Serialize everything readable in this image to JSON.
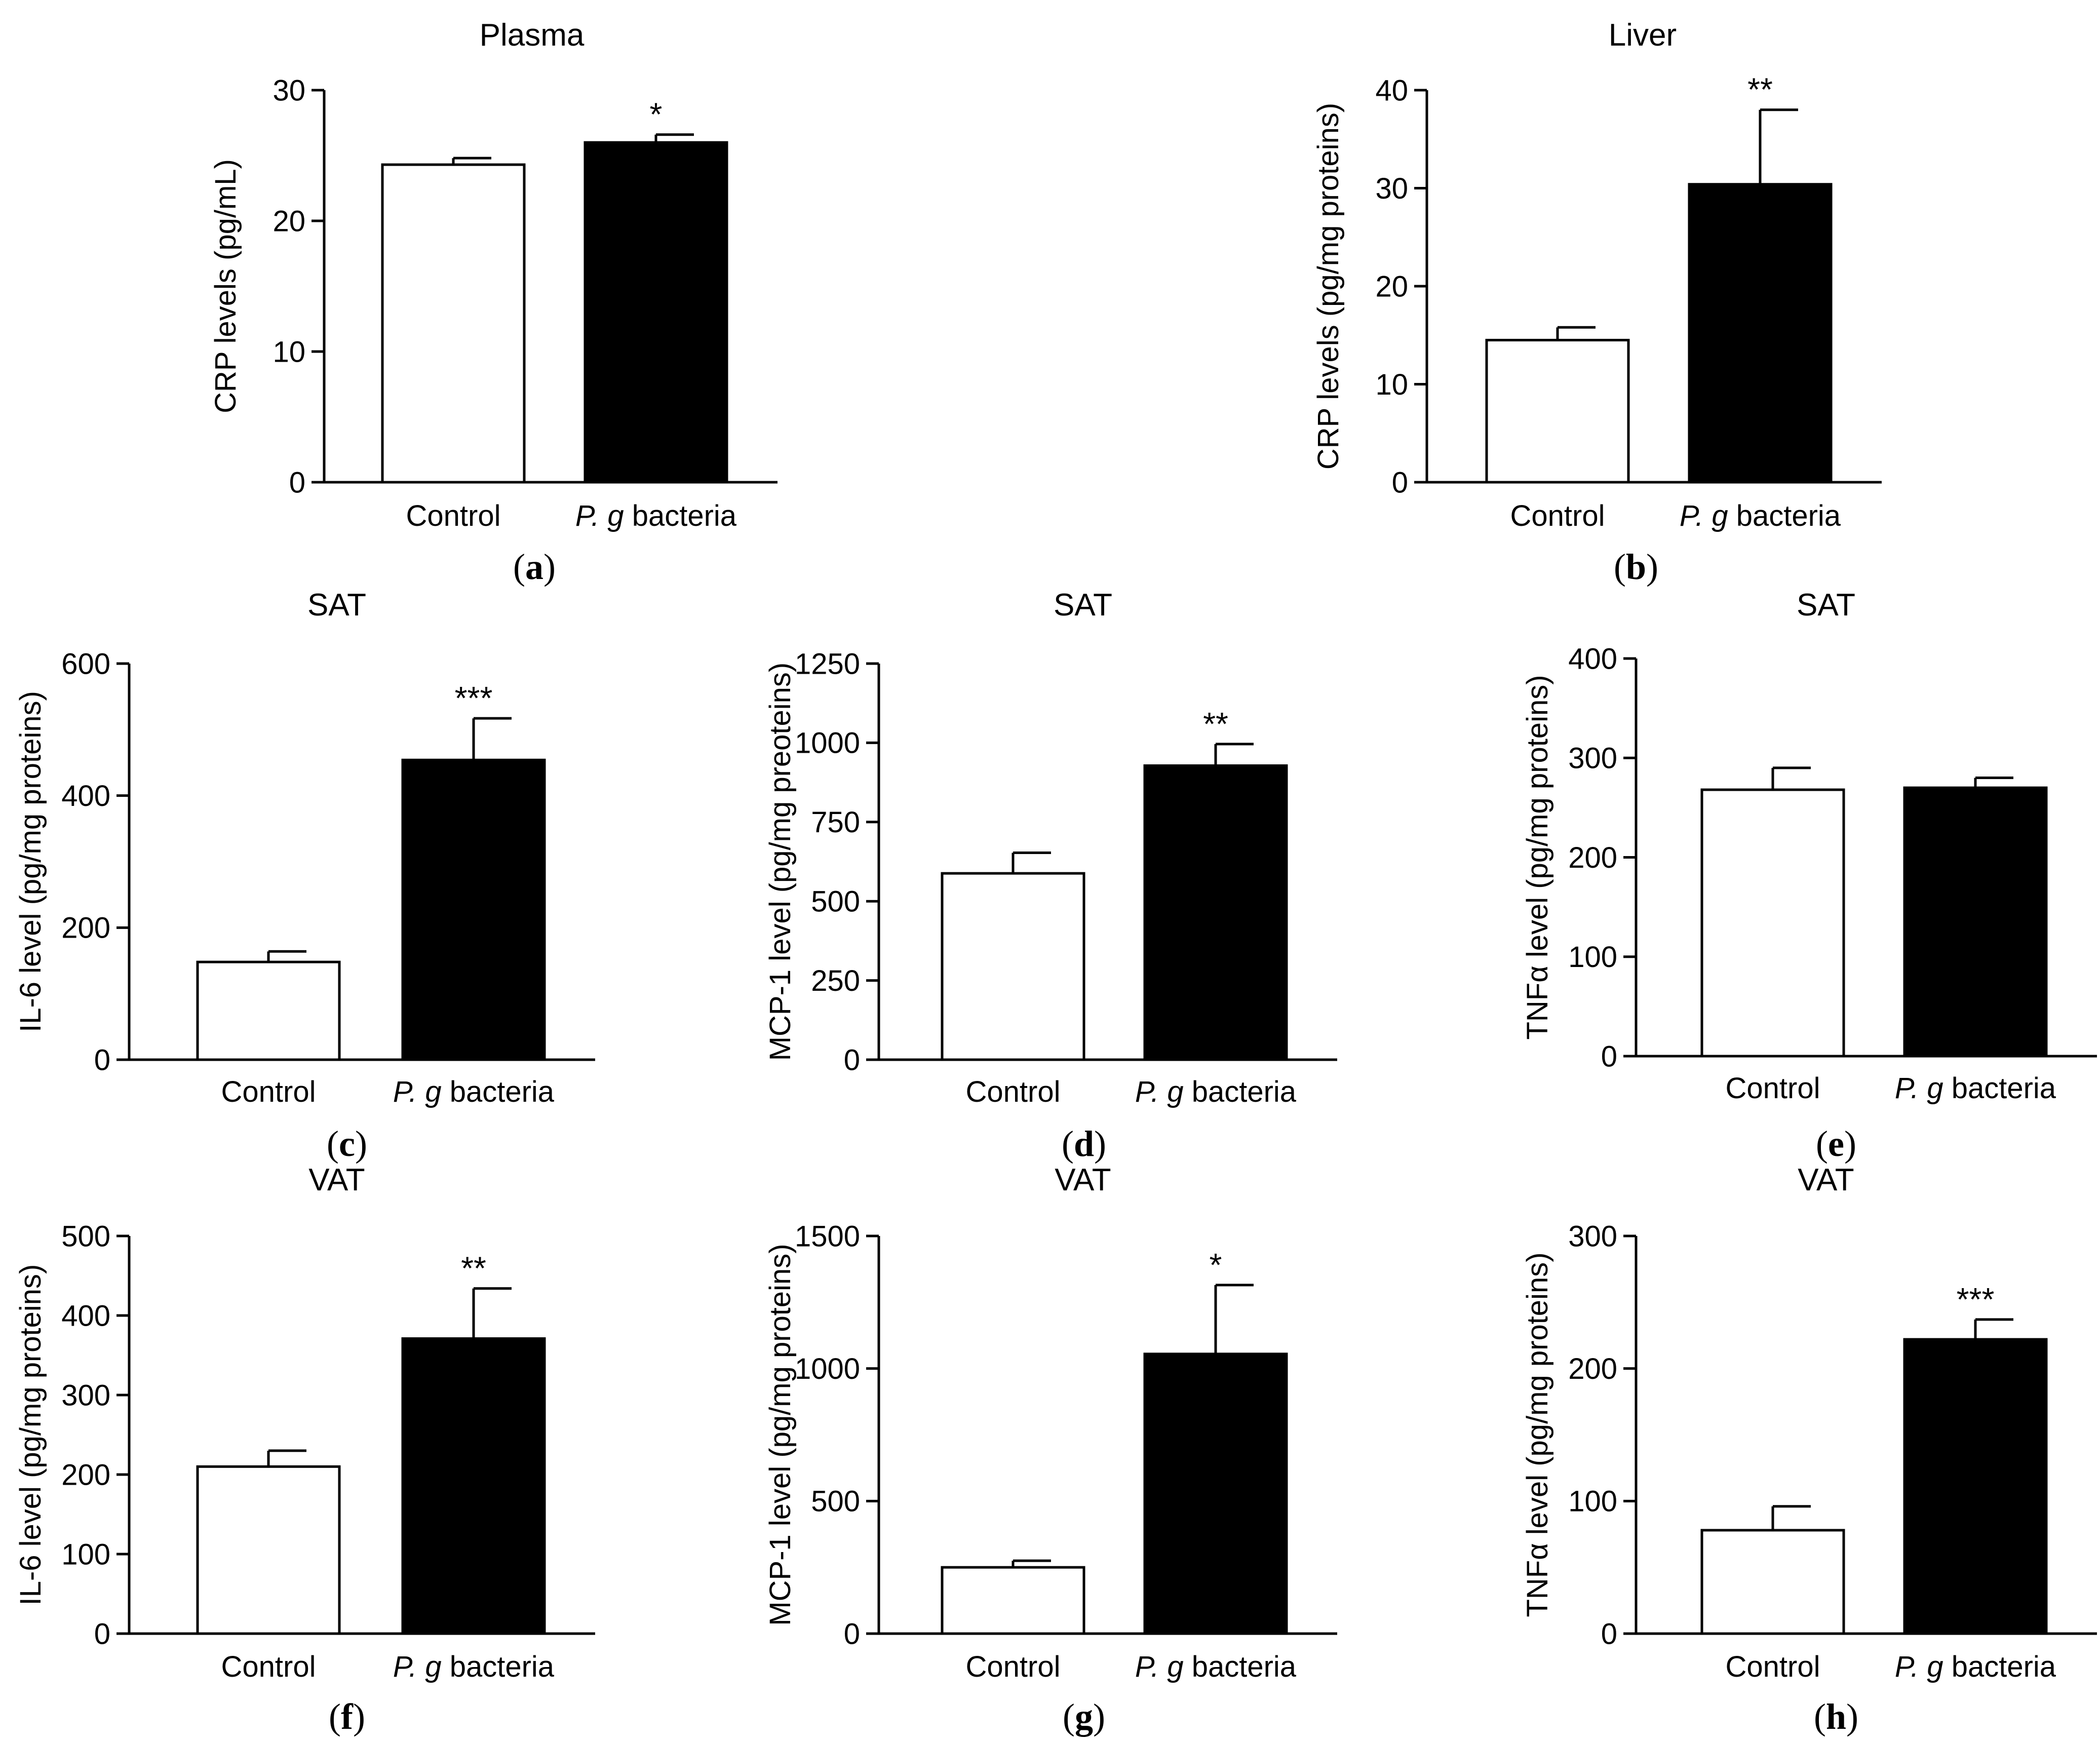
{
  "chart_data": [
    {
      "panel": "a",
      "type": "bar",
      "title": "Plasma",
      "ylabel": "CRP levels (pg/mL)",
      "ylim": [
        0,
        30
      ],
      "yticks": [
        0,
        10,
        20,
        30
      ],
      "categories": [
        "Control",
        "P. g bacteria"
      ],
      "values": [
        24.3,
        26.0
      ],
      "errors": [
        0.5,
        0.6
      ],
      "significance": "*",
      "caption": "a"
    },
    {
      "panel": "b",
      "type": "bar",
      "title": "Liver",
      "ylabel": "CRP levels (pg/mg proteins)",
      "ylim": [
        0,
        40
      ],
      "yticks": [
        0,
        10,
        20,
        30,
        40
      ],
      "categories": [
        "Control",
        "P. g bacteria"
      ],
      "values": [
        14.5,
        30.4
      ],
      "errors": [
        1.3,
        7.6
      ],
      "significance": "**",
      "caption": "b"
    },
    {
      "panel": "c",
      "type": "bar",
      "title": "SAT",
      "ylabel": "IL-6 level (pg/mg proteins)",
      "ylim": [
        0,
        600
      ],
      "yticks": [
        0,
        200,
        400,
        600
      ],
      "categories": [
        "Control",
        "P. g bacteria"
      ],
      "values": [
        148,
        454
      ],
      "errors": [
        16,
        63
      ],
      "significance": "***",
      "caption": "c"
    },
    {
      "panel": "d",
      "type": "bar",
      "title": "SAT",
      "ylabel": "MCP-1 level (pg/mg preoteins)",
      "ylim": [
        0,
        1250
      ],
      "yticks": [
        0,
        250,
        500,
        750,
        1000,
        1250
      ],
      "categories": [
        "Control",
        "P. g bacteria"
      ],
      "values": [
        588,
        928
      ],
      "errors": [
        65,
        68
      ],
      "significance": "**",
      "caption": "d"
    },
    {
      "panel": "e",
      "type": "bar",
      "title": "SAT",
      "ylabel": "TNFα level (pg/mg proteins)",
      "ylim": [
        0,
        400
      ],
      "yticks": [
        0,
        100,
        200,
        300,
        400
      ],
      "categories": [
        "Control",
        "P. g bacteria"
      ],
      "values": [
        268,
        270
      ],
      "errors": [
        22,
        10
      ],
      "significance": "",
      "caption": "e"
    },
    {
      "panel": "f",
      "type": "bar",
      "title": "VAT",
      "ylabel": "IL-6 level (pg/mg proteins)",
      "ylim": [
        0,
        500
      ],
      "yticks": [
        0,
        100,
        200,
        300,
        400,
        500
      ],
      "categories": [
        "Control",
        "P. g bacteria"
      ],
      "values": [
        210,
        371
      ],
      "errors": [
        20,
        63
      ],
      "significance": "**",
      "caption": "f"
    },
    {
      "panel": "g",
      "type": "bar",
      "title": "VAT",
      "ylabel": "MCP-1 level (pg/mg proteins)",
      "ylim": [
        0,
        1500
      ],
      "yticks": [
        0,
        500,
        1000,
        1500
      ],
      "categories": [
        "Control",
        "P. g bacteria"
      ],
      "values": [
        250,
        1055
      ],
      "errors": [
        25,
        260
      ],
      "significance": "*",
      "caption": "g"
    },
    {
      "panel": "h",
      "type": "bar",
      "title": "VAT",
      "ylabel": "TNFα level (pg/mg proteins)",
      "ylim": [
        0,
        300
      ],
      "yticks": [
        0,
        100,
        200,
        300
      ],
      "categories": [
        "Control",
        "P. g bacteria"
      ],
      "values": [
        78,
        222
      ],
      "errors": [
        18,
        15
      ],
      "significance": "***",
      "caption": "h"
    }
  ],
  "colors": {
    "control": "#ffffff",
    "treated": "#000000",
    "stroke": "#000000"
  }
}
